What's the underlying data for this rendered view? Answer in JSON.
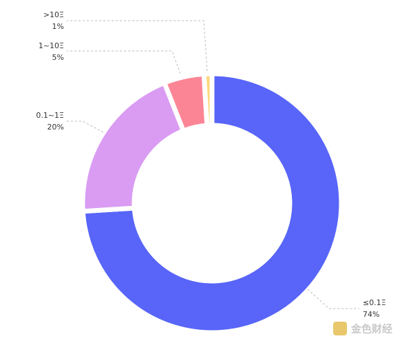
{
  "chart_data": {
    "type": "donut",
    "categories": [
      "≤0.1Ξ",
      "0.1~1Ξ",
      "1~10Ξ",
      ">10Ξ"
    ],
    "values": [
      74,
      20,
      5,
      1
    ],
    "value_labels": [
      "74%",
      "20%",
      "5%",
      "1%"
    ],
    "colors": [
      "#5865f8",
      "#d99cf2",
      "#fb8595",
      "#fcd87c"
    ]
  },
  "watermark": "金色财经"
}
